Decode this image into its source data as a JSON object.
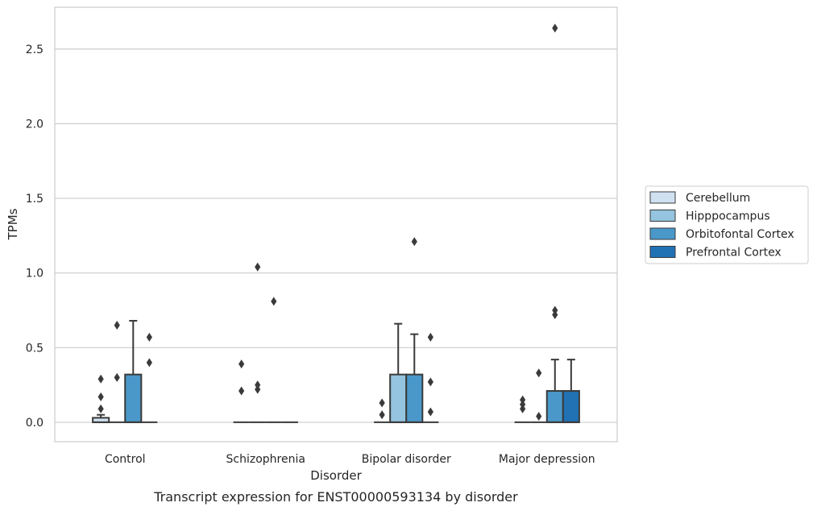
{
  "chart_data": {
    "type": "box",
    "caption": "Transcript expression for ENST00000593134 by disorder",
    "xlabel": "Disorder",
    "ylabel": "TPMs",
    "ylim": [
      -0.13,
      2.78
    ],
    "yticks": [
      0.0,
      0.5,
      1.0,
      1.5,
      2.0,
      2.5
    ],
    "ytick_labels": [
      "0.0",
      "0.5",
      "1.0",
      "1.5",
      "2.0",
      "2.5"
    ],
    "grid": true,
    "legend_placement": "right",
    "categories": [
      "Control",
      "Schizophrenia",
      "Bipolar disorder",
      "Major depression"
    ],
    "series": [
      {
        "name": "Cerebellum",
        "color": "#d0e1f2",
        "boxes": [
          {
            "q1": 0.0,
            "median": 0.0,
            "q3": 0.03,
            "whisker_low": 0.0,
            "whisker_high": 0.05,
            "outliers": [
              0.09,
              0.17,
              0.29
            ]
          },
          {
            "q1": 0.0,
            "median": 0.0,
            "q3": 0.0,
            "whisker_low": 0.0,
            "whisker_high": 0.0,
            "outliers": [
              0.21,
              0.39
            ]
          },
          {
            "q1": 0.0,
            "median": 0.0,
            "q3": 0.0,
            "whisker_low": 0.0,
            "whisker_high": 0.0,
            "outliers": [
              0.05,
              0.13
            ]
          },
          {
            "q1": 0.0,
            "median": 0.0,
            "q3": 0.0,
            "whisker_low": 0.0,
            "whisker_high": 0.0,
            "outliers": [
              0.09,
              0.12,
              0.15
            ]
          }
        ]
      },
      {
        "name": "Hipppocampus",
        "color": "#94c4df",
        "boxes": [
          {
            "q1": 0.0,
            "median": 0.0,
            "q3": 0.0,
            "whisker_low": 0.0,
            "whisker_high": 0.0,
            "outliers": [
              0.3,
              0.65
            ]
          },
          {
            "q1": 0.0,
            "median": 0.0,
            "q3": 0.0,
            "whisker_low": 0.0,
            "whisker_high": 0.0,
            "outliers": [
              0.22,
              0.25,
              1.04
            ]
          },
          {
            "q1": 0.0,
            "median": 0.0,
            "q3": 0.32,
            "whisker_low": 0.0,
            "whisker_high": 0.66,
            "outliers": []
          },
          {
            "q1": 0.0,
            "median": 0.0,
            "q3": 0.0,
            "whisker_low": 0.0,
            "whisker_high": 0.0,
            "outliers": [
              0.04,
              0.33
            ]
          }
        ]
      },
      {
        "name": "Orbitofontal Cortex",
        "color": "#4a98c9",
        "boxes": [
          {
            "q1": 0.0,
            "median": 0.0,
            "q3": 0.32,
            "whisker_low": 0.0,
            "whisker_high": 0.68,
            "outliers": []
          },
          {
            "q1": 0.0,
            "median": 0.0,
            "q3": 0.0,
            "whisker_low": 0.0,
            "whisker_high": 0.0,
            "outliers": [
              0.81
            ]
          },
          {
            "q1": 0.0,
            "median": 0.0,
            "q3": 0.32,
            "whisker_low": 0.0,
            "whisker_high": 0.59,
            "outliers": [
              1.21
            ]
          },
          {
            "q1": 0.0,
            "median": 0.0,
            "q3": 0.21,
            "whisker_low": 0.0,
            "whisker_high": 0.42,
            "outliers": [
              0.72,
              0.75,
              2.64
            ]
          }
        ]
      },
      {
        "name": "Prefrontal Cortex",
        "color": "#2171b5",
        "boxes": [
          {
            "q1": 0.0,
            "median": 0.0,
            "q3": 0.0,
            "whisker_low": 0.0,
            "whisker_high": 0.0,
            "outliers": [
              0.4,
              0.57
            ]
          },
          {
            "q1": 0.0,
            "median": 0.0,
            "q3": 0.0,
            "whisker_low": 0.0,
            "whisker_high": 0.0,
            "outliers": []
          },
          {
            "q1": 0.0,
            "median": 0.0,
            "q3": 0.0,
            "whisker_low": 0.0,
            "whisker_high": 0.0,
            "outliers": [
              0.07,
              0.27,
              0.57
            ]
          },
          {
            "q1": 0.0,
            "median": 0.0,
            "q3": 0.21,
            "whisker_low": 0.0,
            "whisker_high": 0.42,
            "outliers": []
          }
        ]
      }
    ]
  }
}
